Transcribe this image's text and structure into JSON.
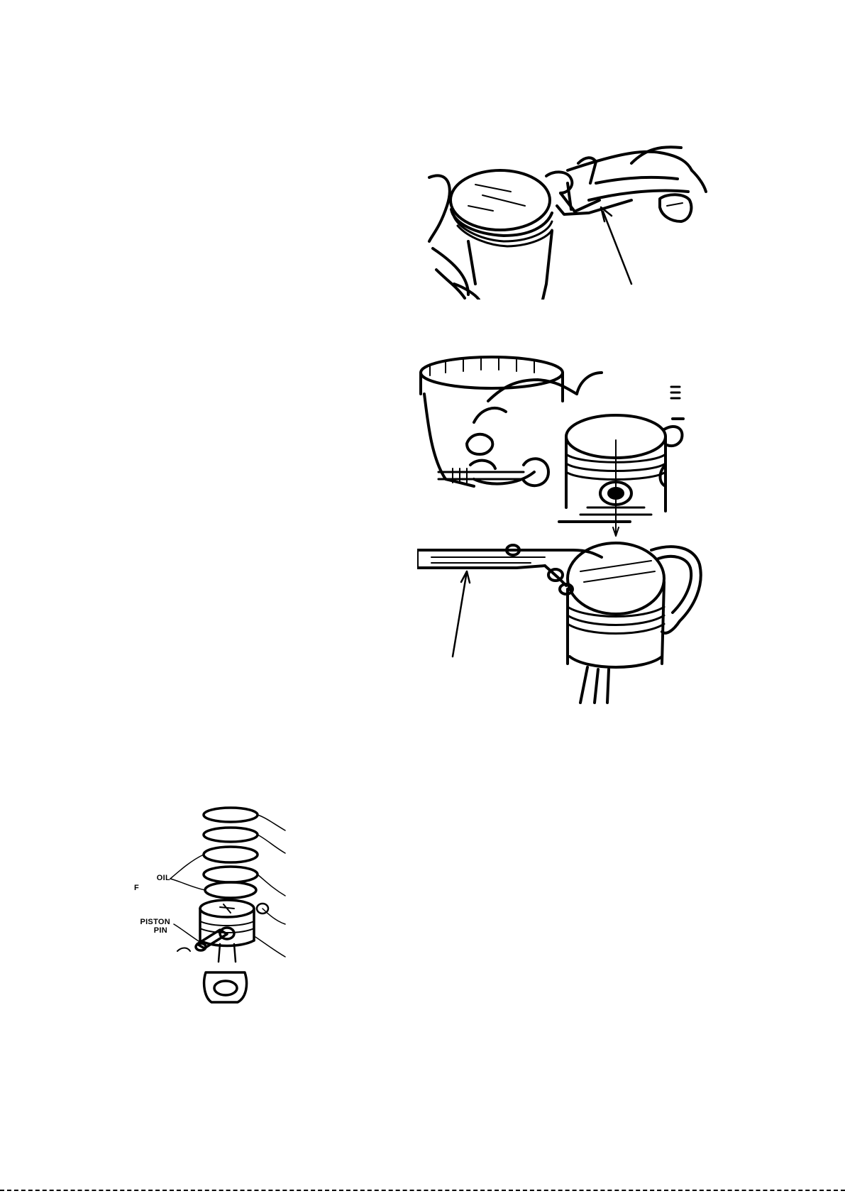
{
  "figures": {
    "ring_expander": {
      "name": "piston-ring-expander-illustration"
    },
    "ring_compressor": {
      "name": "piston-ring-compressor-illustration"
    },
    "piston_exploded": {
      "name": "piston-exploded-view",
      "labels": {
        "oil": "OIL",
        "oil_line2": "F",
        "piston": "PISTON",
        "pin": "PIN"
      }
    }
  }
}
